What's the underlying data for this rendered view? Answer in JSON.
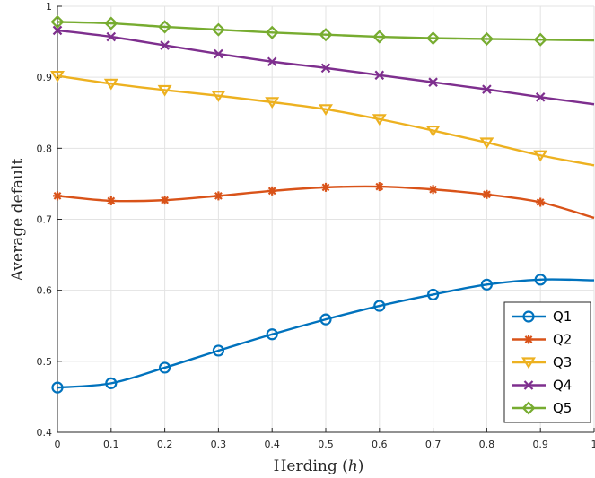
{
  "chart_data": {
    "type": "line",
    "xlabel": "Herding (h)",
    "xlabel_main": "Herding",
    "xlabel_paren_open": "(",
    "xlabel_symbol": "h",
    "xlabel_paren_close": ")",
    "ylabel": "Average default",
    "xlim": [
      0,
      1
    ],
    "ylim": [
      0.4,
      1
    ],
    "xticks": [
      "0",
      "0.1",
      "0.2",
      "0.3",
      "0.4",
      "0.5",
      "0.6",
      "0.7",
      "0.8",
      "0.9",
      "1"
    ],
    "yticks": [
      "0.4",
      "0.5",
      "0.6",
      "0.7",
      "0.8",
      "0.9",
      "1"
    ],
    "grid": true,
    "legend_position": "bottom-right",
    "x": [
      0,
      0.1,
      0.2,
      0.3,
      0.4,
      0.5,
      0.6,
      0.7,
      0.8,
      0.9,
      1.0
    ],
    "series": [
      {
        "name": "Q1",
        "color": "#0072BD",
        "marker": "circle",
        "values": [
          0.463,
          0.469,
          0.491,
          0.515,
          0.538,
          0.559,
          0.578,
          0.594,
          0.608,
          0.615,
          0.614
        ]
      },
      {
        "name": "Q2",
        "color": "#D95319",
        "marker": "asterisk",
        "values": [
          0.733,
          0.726,
          0.727,
          0.733,
          0.74,
          0.745,
          0.746,
          0.742,
          0.735,
          0.724,
          0.702
        ]
      },
      {
        "name": "Q3",
        "color": "#EDB120",
        "marker": "triangle-down",
        "values": [
          0.902,
          0.891,
          0.882,
          0.874,
          0.865,
          0.855,
          0.841,
          0.825,
          0.808,
          0.79,
          0.776
        ]
      },
      {
        "name": "Q4",
        "color": "#7E2F8E",
        "marker": "x",
        "values": [
          0.966,
          0.957,
          0.945,
          0.933,
          0.922,
          0.913,
          0.903,
          0.893,
          0.883,
          0.872,
          0.862
        ]
      },
      {
        "name": "Q5",
        "color": "#77AC30",
        "marker": "diamond",
        "values": [
          0.978,
          0.976,
          0.971,
          0.967,
          0.963,
          0.96,
          0.957,
          0.955,
          0.954,
          0.953,
          0.952
        ]
      }
    ]
  }
}
